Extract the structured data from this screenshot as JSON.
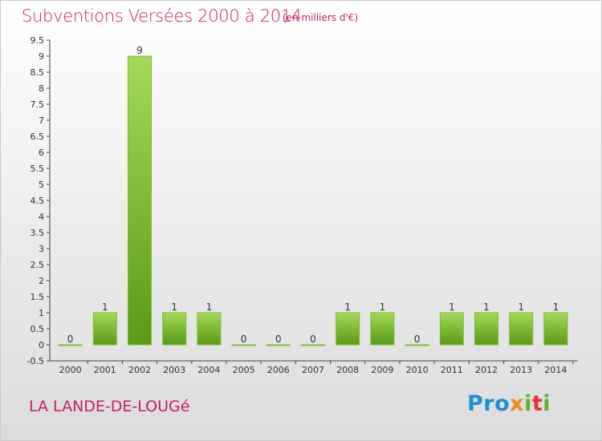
{
  "header": {
    "title": "Subventions Versées 2000 à 2014",
    "subtitle": "(en milliers d'€)"
  },
  "footer": {
    "commune": "LA LANDE-DE-LOUGé",
    "logo": {
      "p1": "Pro",
      "p2": "x",
      "p3": "i",
      "p4": "t",
      "p5": "i"
    }
  },
  "colors": {
    "title": "#c41e6a",
    "bar_light": "#9fd452",
    "bar_dark": "#5d9a18"
  },
  "chart_data": {
    "type": "bar",
    "title": "Subventions Versées 2000 à 2014",
    "subtitle": "(en milliers d'€)",
    "xlabel": "",
    "ylabel": "",
    "categories": [
      "2000",
      "2001",
      "2002",
      "2003",
      "2004",
      "2005",
      "2006",
      "2007",
      "2008",
      "2009",
      "2010",
      "2011",
      "2012",
      "2013",
      "2014"
    ],
    "values": [
      0,
      1,
      9,
      1,
      1,
      0,
      0,
      0,
      1,
      1,
      0,
      1,
      1,
      1,
      1
    ],
    "data_labels": [
      "0",
      "1",
      "9",
      "1",
      "1",
      "0",
      "0",
      "0",
      "1",
      "1",
      "0",
      "1",
      "1",
      "1",
      "1"
    ],
    "ylim": [
      -0.5,
      9.5
    ],
    "yticks": [
      -0.5,
      0,
      0.5,
      1,
      1.5,
      2,
      2.5,
      3,
      3.5,
      4,
      4.5,
      5,
      5.5,
      6,
      6.5,
      7,
      7.5,
      8,
      8.5,
      9,
      9.5
    ],
    "ytick_labels": [
      "-0.5",
      "0",
      "0.5",
      "1",
      "1.5",
      "2",
      "2.5",
      "3",
      "3.5",
      "4",
      "4.5",
      "5",
      "5.5",
      "6",
      "6.5",
      "7",
      "7.5",
      "8",
      "8.5",
      "9",
      "9.5"
    ],
    "grid": false,
    "legend": "none"
  }
}
